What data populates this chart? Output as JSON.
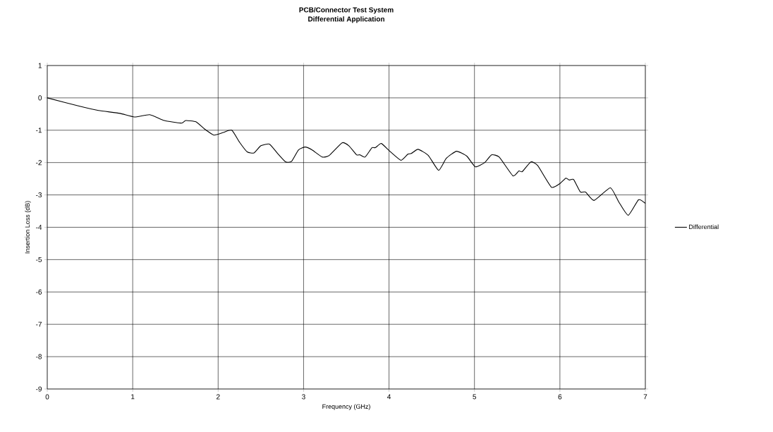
{
  "chart_data": {
    "type": "line",
    "title": "PCB/Connector Test System",
    "subtitle": "Differential Application",
    "xlabel": "Frequency (GHz)",
    "ylabel": "Insertion Loss (dB)",
    "xlim": [
      0,
      7
    ],
    "ylim": [
      -9,
      1
    ],
    "xticks": [
      0,
      1,
      2,
      3,
      4,
      5,
      6,
      7
    ],
    "yticks": [
      -9,
      -8,
      -7,
      -6,
      -5,
      -4,
      -3,
      -2,
      -1,
      0,
      1
    ],
    "grid": true,
    "legend": "right",
    "series": [
      {
        "name": "Differential",
        "color": "#000000",
        "x": [
          0,
          0.38,
          0.6,
          0.85,
          1.02,
          1.2,
          1.37,
          1.57,
          1.62,
          1.74,
          1.84,
          1.95,
          2.06,
          2.16,
          2.25,
          2.34,
          2.42,
          2.5,
          2.6,
          2.69,
          2.79,
          2.86,
          2.94,
          3.02,
          3.1,
          3.22,
          3.3,
          3.45,
          3.53,
          3.62,
          3.66,
          3.72,
          3.8,
          3.84,
          3.91,
          4.01,
          4.14,
          4.22,
          4.26,
          4.34,
          4.46,
          4.58,
          4.67,
          4.79,
          4.91,
          5.01,
          5.12,
          5.2,
          5.29,
          5.45,
          5.52,
          5.56,
          5.66,
          5.74,
          5.9,
          6.0,
          6.07,
          6.11,
          6.16,
          6.24,
          6.3,
          6.4,
          6.59,
          6.69,
          6.8,
          6.92,
          7.0
        ],
        "values": [
          0,
          -0.26,
          -0.39,
          -0.48,
          -0.59,
          -0.52,
          -0.7,
          -0.78,
          -0.7,
          -0.74,
          -0.96,
          -1.15,
          -1.07,
          -1.0,
          -1.37,
          -1.67,
          -1.7,
          -1.48,
          -1.43,
          -1.7,
          -1.98,
          -1.96,
          -1.61,
          -1.52,
          -1.61,
          -1.83,
          -1.78,
          -1.39,
          -1.48,
          -1.76,
          -1.76,
          -1.83,
          -1.54,
          -1.54,
          -1.41,
          -1.65,
          -1.93,
          -1.74,
          -1.72,
          -1.59,
          -1.78,
          -2.24,
          -1.87,
          -1.65,
          -1.8,
          -2.13,
          -2.0,
          -1.76,
          -1.83,
          -2.41,
          -2.26,
          -2.28,
          -1.98,
          -2.09,
          -2.76,
          -2.65,
          -2.48,
          -2.54,
          -2.52,
          -2.91,
          -2.91,
          -3.17,
          -2.78,
          -3.22,
          -3.63,
          -3.15,
          -3.26
        ]
      }
    ]
  }
}
